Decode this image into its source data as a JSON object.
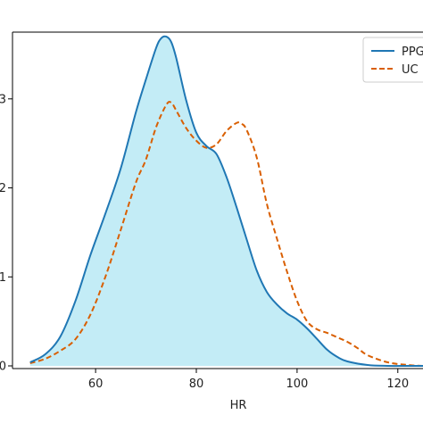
{
  "chart_data": {
    "type": "line",
    "title": "",
    "xlabel": "HR",
    "ylabel": "",
    "xlim": [
      43.5,
      125
    ],
    "ylim": [
      -0.0003,
      0.0375
    ],
    "x_ticks": [
      60,
      80,
      100,
      120
    ],
    "x_tick_labels": [
      "60",
      "80",
      "100",
      "120"
    ],
    "y_ticks": [
      0,
      0.01,
      0.02,
      0.03
    ],
    "y_tick_labels": [
      "0",
      "1",
      "2",
      "3"
    ],
    "grid": false,
    "legend_position": "top-right",
    "series": [
      {
        "name": "PPG",
        "style": "solid",
        "color": "#1f77b4",
        "filled": true,
        "fill_color": "#c3ecf6",
        "x": [
          47,
          50,
          53,
          56,
          59,
          62,
          65,
          68,
          70,
          72,
          73,
          74,
          75,
          76,
          78,
          80,
          82,
          84,
          86,
          88,
          90,
          92,
          94,
          96,
          98,
          100,
          102,
          104,
          106,
          108,
          110,
          114,
          118,
          122,
          125
        ],
        "y": [
          0.0004,
          0.0013,
          0.0033,
          0.0073,
          0.0125,
          0.0172,
          0.0222,
          0.0285,
          0.0322,
          0.0357,
          0.0368,
          0.037,
          0.0364,
          0.0346,
          0.0298,
          0.0262,
          0.0247,
          0.0238,
          0.0212,
          0.0178,
          0.0142,
          0.0107,
          0.0083,
          0.0069,
          0.0059,
          0.0052,
          0.0042,
          0.003,
          0.0018,
          0.001,
          0.0005,
          0.0001,
          0.0,
          0.0,
          0.0
        ]
      },
      {
        "name": "UC",
        "style": "dashed",
        "color": "#d95f02",
        "filled": false,
        "x": [
          47,
          50,
          53,
          56,
          59,
          62,
          65,
          68,
          70,
          72,
          74,
          75,
          76,
          78,
          80,
          82,
          84,
          86,
          88,
          89,
          90,
          92,
          94,
          96,
          98,
          100,
          102,
          104,
          106,
          108,
          110,
          112,
          114,
          118,
          122,
          125
        ],
        "y": [
          0.0003,
          0.0008,
          0.0017,
          0.003,
          0.0058,
          0.0101,
          0.0153,
          0.0206,
          0.0232,
          0.0268,
          0.0293,
          0.0296,
          0.0287,
          0.0267,
          0.0253,
          0.0245,
          0.0249,
          0.0264,
          0.0273,
          0.0272,
          0.0265,
          0.0234,
          0.0182,
          0.0143,
          0.0106,
          0.0073,
          0.005,
          0.0041,
          0.0037,
          0.0032,
          0.0027,
          0.002,
          0.0012,
          0.0004,
          0.0001,
          0.0
        ]
      }
    ]
  }
}
